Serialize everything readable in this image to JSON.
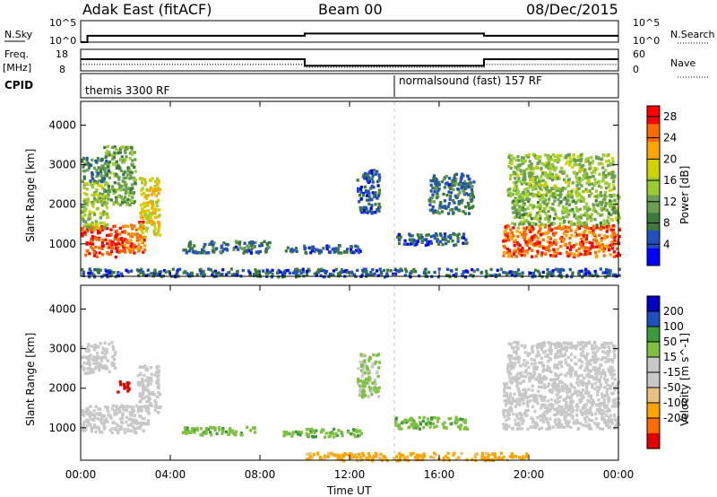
{
  "header": {
    "station": "Adak East (fitACF)",
    "beam": "Beam 00",
    "date": "08/Dec/2015"
  },
  "noise_panel": {
    "left_label": "N.Sky",
    "left_ticks": [
      "10^5",
      "10^0"
    ],
    "right_label": "N.Search",
    "right_ticks": [
      "10^5",
      "10^0"
    ]
  },
  "freq_panel": {
    "left_label_1": "Freq.",
    "left_label_2": "[MHz]",
    "left_ticks": [
      "18",
      "8"
    ],
    "right_label": "Nave",
    "right_ticks": [
      "60",
      "0"
    ]
  },
  "cpid_panel": {
    "label": "CPID",
    "segments": [
      {
        "name": "themis 3300 RF",
        "start_hour": 0
      },
      {
        "name": "normalsound (fast) 157 RF",
        "start_hour": 14
      }
    ]
  },
  "x_axis": {
    "label": "Time UT",
    "ticks": [
      "00:00",
      "04:00",
      "08:00",
      "12:00",
      "16:00",
      "20:00",
      "00:00"
    ]
  },
  "colors": {
    "power_scale": [
      "#0000ff",
      "#2050c0",
      "#3c7a3c",
      "#6a9e50",
      "#9acd32",
      "#d2d200",
      "#ffa500",
      "#ff6a00",
      "#ff0000"
    ],
    "velocity_scale": [
      "#e00000",
      "#ff6a00",
      "#ffa500",
      "#e8c080",
      "#c8c8c8",
      "#c8c8c8",
      "#80c040",
      "#3c9a3c",
      "#2050c0",
      "#0000c0"
    ],
    "ground_scatter": "#c8c8c8"
  },
  "chart_data": [
    {
      "type": "line",
      "title": "N.Sky / N.Search",
      "x_unit": "hour UT",
      "ylim": [
        1,
        100000
      ],
      "yscale": "log",
      "series": [
        {
          "name": "N.Sky",
          "x": [
            0,
            0.3,
            0.3,
            10,
            10,
            18,
            18,
            24
          ],
          "y": [
            1,
            1,
            30,
            30,
            100,
            100,
            30,
            30
          ]
        }
      ]
    },
    {
      "type": "line",
      "title": "Freq. / Nave",
      "x_unit": "hour UT",
      "ylim": [
        8,
        18
      ],
      "series": [
        {
          "name": "Freq.",
          "x": [
            0,
            10,
            10,
            18,
            18,
            24
          ],
          "y": [
            13.4,
            13.4,
            10.4,
            10.4,
            13.4,
            13.4
          ]
        },
        {
          "name": "Nave",
          "x": [
            0,
            10,
            10,
            18,
            18,
            24
          ],
          "y": [
            18,
            18,
            10,
            10,
            18,
            18
          ]
        }
      ]
    },
    {
      "type": "heatmap",
      "quantity": "Power",
      "colorbar_label": "Power [dB]",
      "colorbar_ticks": [
        4,
        8,
        12,
        16,
        20,
        24,
        28
      ],
      "clim": [
        0,
        30
      ],
      "ylabel": "Slant Range [km]",
      "y_ticks": [
        1000,
        2000,
        3000,
        4000
      ],
      "ylim": [
        180,
        4600
      ],
      "xlabel": "Time UT",
      "xlim": [
        0,
        24
      ],
      "scatter_regions": [
        {
          "t0": 0.0,
          "t1": 1.9,
          "r0": 700,
          "r1": 1500,
          "value": 27
        },
        {
          "t0": 1.9,
          "t1": 2.8,
          "r0": 800,
          "r1": 1600,
          "value": 24
        },
        {
          "t0": 2.6,
          "t1": 3.5,
          "r0": 1200,
          "r1": 2700,
          "value": 19
        },
        {
          "t0": 0.0,
          "t1": 1.2,
          "r0": 1400,
          "r1": 2600,
          "value": 15
        },
        {
          "t0": 1.0,
          "t1": 2.4,
          "r0": 2000,
          "r1": 3500,
          "value": 12
        },
        {
          "t0": 0.0,
          "t1": 1.2,
          "r0": 2600,
          "r1": 3200,
          "value": 9
        },
        {
          "t0": 4.5,
          "t1": 8.4,
          "r0": 800,
          "r1": 1100,
          "value": 7
        },
        {
          "t0": 9.0,
          "t1": 12.5,
          "r0": 800,
          "r1": 1000,
          "value": 6
        },
        {
          "t0": 12.3,
          "t1": 13.3,
          "r0": 1800,
          "r1": 2900,
          "value": 6
        },
        {
          "t0": 15.5,
          "t1": 17.5,
          "r0": 1800,
          "r1": 2800,
          "value": 7
        },
        {
          "t0": 14.0,
          "t1": 17.2,
          "r0": 1000,
          "r1": 1300,
          "value": 6
        },
        {
          "t0": 18.8,
          "t1": 24.0,
          "r0": 700,
          "r1": 1500,
          "value": 25
        },
        {
          "t0": 19.2,
          "t1": 24.0,
          "r0": 1500,
          "r1": 2300,
          "value": 13
        },
        {
          "t0": 19.0,
          "t1": 23.8,
          "r0": 2200,
          "r1": 3300,
          "value": 14
        },
        {
          "t0": 0.0,
          "t1": 24.0,
          "r0": 200,
          "r1": 400,
          "value": 6
        }
      ]
    },
    {
      "type": "heatmap",
      "quantity": "Velocity",
      "colorbar_label": "Velocity [m s^-1]",
      "colorbar_ticks": [
        200,
        100,
        50,
        15,
        -15,
        -50,
        -100,
        -200
      ],
      "clim": [
        -250,
        250
      ],
      "ylabel": "Slant Range [km]",
      "y_ticks": [
        1000,
        2000,
        3000,
        4000
      ],
      "ylim": [
        180,
        4600
      ],
      "xlabel": "Time UT",
      "xlim": [
        0,
        24
      ],
      "scatter_regions": [
        {
          "t0": 0.0,
          "t1": 3.0,
          "r0": 900,
          "r1": 1600,
          "value": 0
        },
        {
          "t0": 2.5,
          "t1": 3.5,
          "r0": 1400,
          "r1": 2600,
          "value": 0
        },
        {
          "t0": 0.0,
          "t1": 1.5,
          "r0": 2400,
          "r1": 3200,
          "value": 0
        },
        {
          "t0": 1.6,
          "t1": 2.2,
          "r0": 1900,
          "r1": 2200,
          "value": -220
        },
        {
          "t0": 4.5,
          "t1": 8.0,
          "r0": 850,
          "r1": 1050,
          "value": 40
        },
        {
          "t0": 9.0,
          "t1": 12.5,
          "r0": 800,
          "r1": 1000,
          "value": 40
        },
        {
          "t0": 12.3,
          "t1": 13.3,
          "r0": 1800,
          "r1": 2900,
          "value": 20
        },
        {
          "t0": 14.0,
          "t1": 17.2,
          "r0": 1000,
          "r1": 1300,
          "value": 40
        },
        {
          "t0": 18.8,
          "t1": 24.0,
          "r0": 1000,
          "r1": 2200,
          "value": 0
        },
        {
          "t0": 19.0,
          "t1": 23.8,
          "r0": 2200,
          "r1": 3200,
          "value": 0
        },
        {
          "t0": 10.0,
          "t1": 20.0,
          "r0": 200,
          "r1": 400,
          "value": -60
        }
      ]
    }
  ]
}
